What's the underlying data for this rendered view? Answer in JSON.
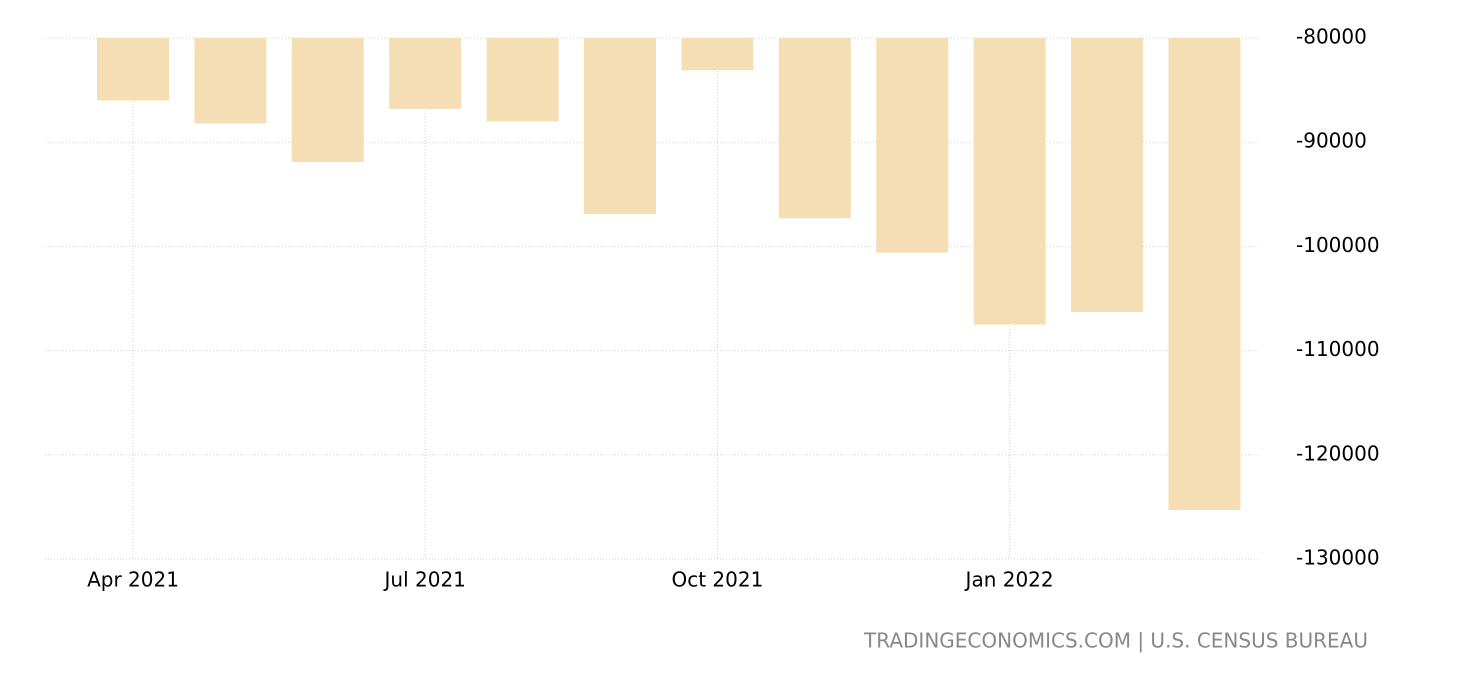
{
  "chart_data": {
    "type": "bar",
    "categories": [
      "Apr 2021",
      null,
      null,
      "Jul 2021",
      null,
      null,
      "Oct 2021",
      null,
      null,
      "Jan 2022",
      null,
      null
    ],
    "values": [
      -86000,
      -88200,
      -91900,
      -86800,
      -88000,
      -96900,
      -83100,
      -97300,
      -100600,
      -107500,
      -106300,
      -125300
    ],
    "color": "#f5deb3",
    "ylim": [
      -130000,
      -80000
    ],
    "yticks": [
      -130000,
      -120000,
      -110000,
      -100000,
      -90000,
      -80000
    ],
    "grid": true,
    "source": "TRADINGECONOMICS.COM | U.S. CENSUS BUREAU"
  }
}
